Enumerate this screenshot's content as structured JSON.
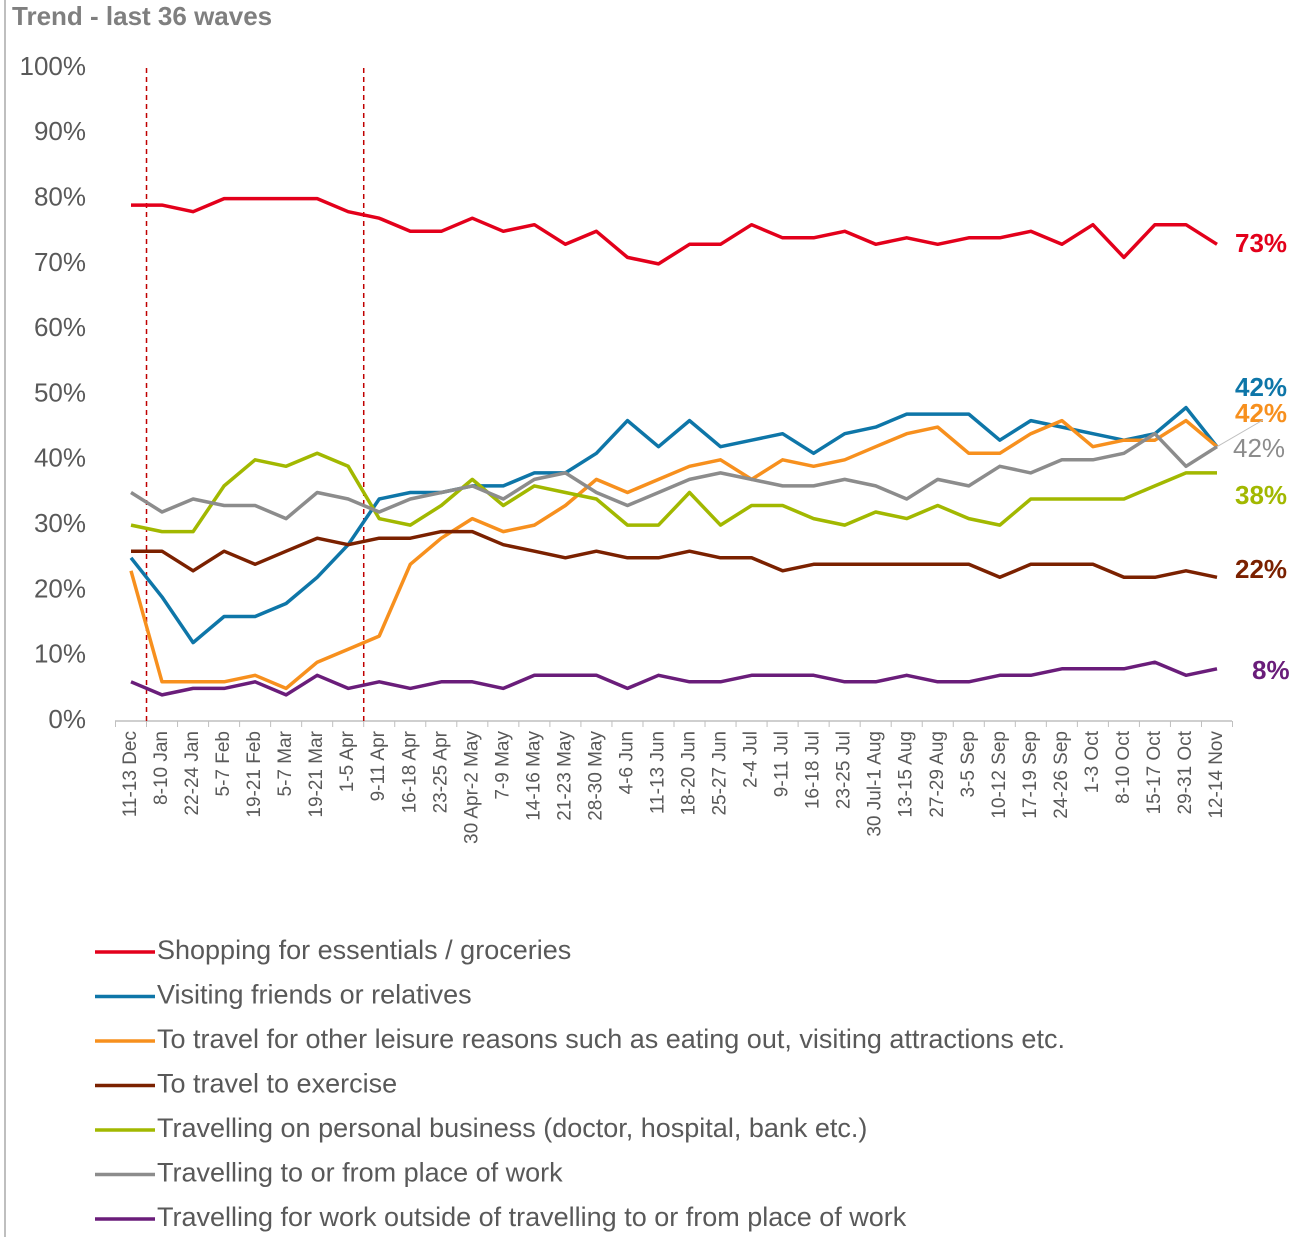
{
  "chart_data": {
    "type": "line",
    "title": "Trend - last 36 waves",
    "categories": [
      "11-13 Dec",
      "8-10 Jan",
      "22-24 Jan",
      "5-7 Feb",
      "19-21 Feb",
      "5-7 Mar",
      "19-21 Mar",
      "1-5 Apr",
      "9-11 Apr",
      "16-18 Apr",
      "23-25 Apr",
      "30 Apr-2 May",
      "7-9 May",
      "14-16 May",
      "21-23 May",
      "28-30 May",
      "4-6 Jun",
      "11-13 Jun",
      "18-20 Jun",
      "25-27 Jun",
      "2-4 Jul",
      "9-11 Jul",
      "16-18 Jul",
      "23-25 Jul",
      "30 Jul-1 Aug",
      "13-15 Aug",
      "27-29 Aug",
      "3-5 Sep",
      "10-12 Sep",
      "17-19 Sep",
      "24-26 Sep",
      "1-3 Oct",
      "8-10 Oct",
      "15-17 Oct",
      "29-31 Oct",
      "12-14 Nov"
    ],
    "series": [
      {
        "name": "Shopping for essentials / groceries",
        "color": "#e3001b",
        "end_label": "73%",
        "values": [
          79,
          79,
          78,
          80,
          80,
          80,
          80,
          78,
          77,
          75,
          75,
          77,
          75,
          76,
          73,
          75,
          71,
          70,
          73,
          73,
          76,
          74,
          74,
          75,
          73,
          74,
          73,
          74,
          74,
          75,
          73,
          76,
          71,
          76,
          76,
          73
        ]
      },
      {
        "name": "Visiting friends or relatives",
        "color": "#0e76a8",
        "end_label": "42%",
        "values": [
          25,
          19,
          12,
          16,
          16,
          18,
          22,
          27,
          34,
          35,
          35,
          36,
          36,
          38,
          38,
          41,
          46,
          42,
          46,
          42,
          43,
          44,
          41,
          44,
          45,
          47,
          47,
          47,
          43,
          46,
          45,
          44,
          43,
          44,
          48,
          42
        ]
      },
      {
        "name": "To travel for other leisure reasons such as eating out, visiting attractions etc.",
        "color": "#f7901e",
        "end_label": "42%",
        "values": [
          23,
          6,
          6,
          6,
          7,
          5,
          9,
          11,
          13,
          24,
          28,
          31,
          29,
          30,
          33,
          37,
          35,
          37,
          39,
          40,
          37,
          40,
          39,
          40,
          42,
          44,
          45,
          41,
          41,
          44,
          46,
          42,
          43,
          43,
          46,
          42
        ]
      },
      {
        "name": "To travel to exercise",
        "color": "#7b2100",
        "end_label": "22%",
        "values": [
          26,
          26,
          23,
          26,
          24,
          26,
          28,
          27,
          28,
          28,
          29,
          29,
          27,
          26,
          25,
          26,
          25,
          25,
          26,
          25,
          25,
          23,
          24,
          24,
          24,
          24,
          24,
          24,
          22,
          24,
          24,
          24,
          22,
          22,
          23,
          22
        ]
      },
      {
        "name": "Travelling on personal business (doctor, hospital, bank etc.)",
        "color": "#a2b800",
        "end_label": "38%",
        "values": [
          30,
          29,
          29,
          36,
          40,
          39,
          41,
          39,
          31,
          30,
          33,
          37,
          33,
          36,
          35,
          34,
          30,
          30,
          35,
          30,
          33,
          33,
          31,
          30,
          32,
          31,
          33,
          31,
          30,
          34,
          34,
          34,
          34,
          36,
          38,
          38
        ]
      },
      {
        "name": "Travelling to or from place of work",
        "color": "#8c8c8c",
        "end_label": "42%",
        "values": [
          35,
          32,
          34,
          33,
          33,
          31,
          35,
          34,
          32,
          34,
          35,
          36,
          34,
          37,
          38,
          35,
          33,
          35,
          37,
          38,
          37,
          36,
          36,
          37,
          36,
          34,
          37,
          36,
          39,
          38,
          40,
          40,
          41,
          44,
          39,
          42
        ]
      },
      {
        "name": "Travelling for work outside of travelling to or from place of work",
        "color": "#6a1d7a",
        "end_label": "8%",
        "values": [
          6,
          4,
          5,
          5,
          6,
          4,
          7,
          5,
          6,
          5,
          6,
          6,
          5,
          7,
          7,
          7,
          5,
          7,
          6,
          6,
          7,
          7,
          7,
          6,
          6,
          7,
          6,
          6,
          7,
          7,
          8,
          8,
          8,
          9,
          7,
          8
        ]
      }
    ],
    "ylim": [
      0,
      100
    ],
    "yticks": [
      {
        "value": 0,
        "label": "0%"
      },
      {
        "value": 10,
        "label": "10%"
      },
      {
        "value": 20,
        "label": "20%"
      },
      {
        "value": 30,
        "label": "30%"
      },
      {
        "value": 40,
        "label": "40%"
      },
      {
        "value": 50,
        "label": "50%"
      },
      {
        "value": 60,
        "label": "60%"
      },
      {
        "value": 70,
        "label": "70%"
      },
      {
        "value": 80,
        "label": "80%"
      },
      {
        "value": 90,
        "label": "90%"
      },
      {
        "value": 100,
        "label": "100%"
      }
    ],
    "grid": false,
    "reference_lines_after": [
      "11-13 Dec",
      "1-5 Apr"
    ],
    "reference_line_color": "#c00000",
    "legend": "bottom"
  }
}
